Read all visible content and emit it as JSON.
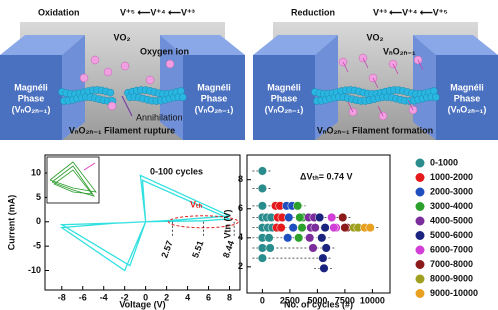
{
  "schematics": [
    {
      "process": "Oxidation",
      "equation": "V⁺⁵ ⟵V⁺⁴ ⟵V⁺³",
      "material": "VO₂",
      "ion_label": "Oxygen ion",
      "left_phase": [
        "Magnéli",
        "Phase",
        "(VₙO₂ₙ₋₁)"
      ],
      "right_phase": [
        "Magnéli",
        "Phase",
        "(VₙO₂ₙ₋₁)"
      ],
      "event": "Annihilation",
      "filament": "VₙO₂ₙ₋₁ Filament rupture"
    },
    {
      "process": "Reduction",
      "equation": "V⁺³ ⟵V⁺⁴ ⟵V⁺⁵",
      "material": "VO₂",
      "ion_label": "VₙO₂ₙ₋₁",
      "left_phase": [
        "Magnéli",
        "Phase",
        "(VₙO₂ₙ₋₁)"
      ],
      "right_phase": [
        "Magnéli",
        "Phase",
        "(VₙO₂ₙ₋₁)"
      ],
      "filament": "VₙO₂ₙ₋₁ Filament formation"
    }
  ],
  "chart_data": [
    {
      "type": "line",
      "x_label": "Voltage (V)",
      "y_label": "Current (mA)",
      "annotation": "0-100 cycles",
      "threshold_label": "Vₜₕ",
      "threshold_voltages": [
        2.57,
        5.51,
        8.44
      ],
      "xlim": [
        -9.6,
        9
      ],
      "xticks": [
        -8,
        -6,
        -4,
        -2,
        0,
        2,
        4,
        6,
        8
      ],
      "ylim": [
        -14,
        13.7
      ],
      "yticks": [
        -10,
        -5,
        0,
        5,
        10
      ],
      "series": [
        {
          "color": "#33e0e0",
          "x": [
            0,
            -0.5,
            8,
            2.6,
            0,
            -2,
            -8,
            -3,
            0,
            -0.3,
            8,
            5.5,
            0,
            -1.5,
            -8,
            -2,
            0
          ],
          "values": [
            0,
            9.5,
            1.2,
            0.3,
            0,
            -10,
            -1.2,
            -0.3,
            0,
            8.5,
            0.6,
            0.2,
            0,
            -9,
            -0.6,
            -0.2,
            0
          ]
        }
      ]
    },
    {
      "type": "scatter",
      "x_label": "No. of cycles (#)",
      "y_label": "Vtn (V)",
      "annotation": "ΔVₜₕ= 0.74 V",
      "xlim": [
        -1400,
        11600
      ],
      "xticks": [
        0,
        2500,
        5000,
        7500,
        10000
      ],
      "ylim": [
        0.2,
        9.7
      ],
      "yticks": [
        2,
        4,
        6,
        8
      ],
      "series": [
        {
          "name": "0-1000",
          "color": "#2a8c8c",
          "x": [
            0,
            0,
            0,
            0,
            400,
            800,
            0,
            500,
            900,
            0,
            600,
            0,
            700,
            0
          ],
          "values": [
            8.6,
            7.4,
            6.2,
            5.4,
            5.4,
            5.4,
            4.7,
            4.7,
            4.7,
            4.0,
            4.0,
            3.3,
            3.3,
            2.6
          ]
        },
        {
          "name": "1000-2000",
          "color": "#e41a1c",
          "x": [
            1200,
            1600,
            1400,
            1800,
            1300,
            1700
          ],
          "values": [
            6.2,
            6.2,
            5.4,
            5.4,
            4.7,
            4.7
          ]
        },
        {
          "name": "2000-3000",
          "color": "#1f4fbf",
          "x": [
            2200,
            2700,
            2400,
            2800,
            2300
          ],
          "values": [
            6.2,
            6.2,
            5.4,
            4.7,
            4.0
          ]
        },
        {
          "name": "3000-4000",
          "color": "#2ca02c",
          "x": [
            3200,
            3700,
            3400,
            3600,
            3300
          ],
          "values": [
            6.2,
            5.4,
            5.4,
            4.7,
            4.0
          ]
        },
        {
          "name": "4000-5000",
          "color": "#7b2d9b",
          "x": [
            4200,
            4700,
            4400,
            4800,
            4300,
            4600
          ],
          "values": [
            5.4,
            5.4,
            4.7,
            4.7,
            4.0,
            3.3
          ]
        },
        {
          "name": "5000-6000",
          "color": "#1a237e",
          "x": [
            5200,
            5700,
            5400,
            5500,
            5800,
            5600
          ],
          "values": [
            5.4,
            4.7,
            4.0,
            2.6,
            3.3,
            1.9
          ]
        },
        {
          "name": "6000-7000",
          "color": "#d13fd6",
          "x": [
            6300,
            6700,
            6500
          ],
          "values": [
            5.4,
            4.7,
            4.7
          ]
        },
        {
          "name": "7000-8000",
          "color": "#8b1a1a",
          "x": [
            7300,
            7700,
            7500
          ],
          "values": [
            5.4,
            4.7,
            4.7
          ]
        },
        {
          "name": "8000-9000",
          "color": "#a0a020",
          "x": [
            8300,
            8700
          ],
          "values": [
            4.7,
            4.7
          ]
        },
        {
          "name": "9000-10000",
          "color": "#e8a020",
          "x": [
            9300,
            9800
          ],
          "values": [
            4.7,
            4.7
          ]
        }
      ]
    }
  ]
}
